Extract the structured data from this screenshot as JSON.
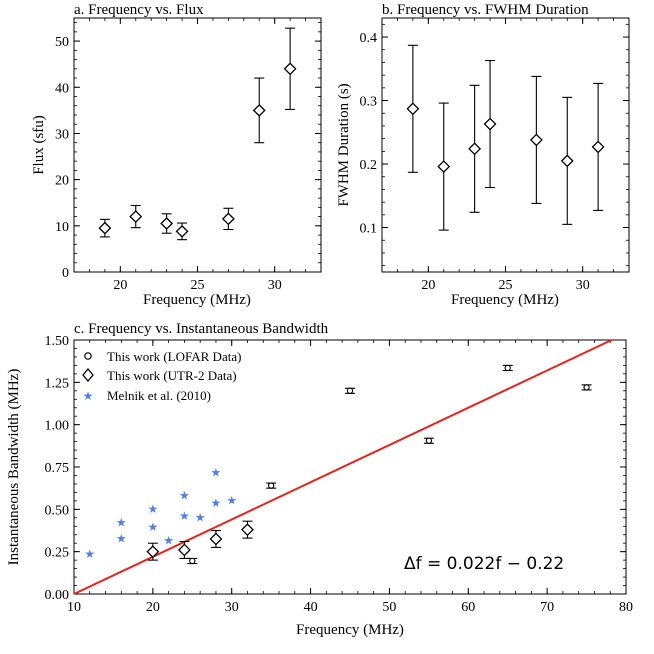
{
  "chart_data": [
    {
      "id": "a",
      "type": "scatter",
      "title": "a. Frequency vs. Flux",
      "xlabel": "Frequency (MHz)",
      "ylabel": "Flux (sfu)",
      "xlim": [
        17,
        33
      ],
      "ylim": [
        0,
        55
      ],
      "xticks": [
        20,
        25,
        30
      ],
      "yticks": [
        0,
        10,
        20,
        30,
        40,
        50
      ],
      "ytick_labels": [
        "0",
        "10",
        "20",
        "30",
        "40",
        "50"
      ],
      "series": [
        {
          "marker": "diamond",
          "x": [
            19,
            21,
            23,
            24,
            27,
            29,
            31
          ],
          "y": [
            9.5,
            12.0,
            10.5,
            8.8,
            11.5,
            35.0,
            44.0
          ],
          "err_low": [
            7.6,
            9.6,
            8.4,
            7.0,
            9.2,
            28.0,
            35.2
          ],
          "err_high": [
            11.4,
            14.4,
            12.6,
            10.6,
            13.8,
            42.0,
            52.8
          ]
        }
      ]
    },
    {
      "id": "b",
      "type": "scatter",
      "title": "b. Frequency vs. FWHM Duration",
      "xlabel": "Frequency (MHz)",
      "ylabel": "FWHM Duration (s)",
      "xlim": [
        17,
        33
      ],
      "ylim": [
        0.03,
        0.43
      ],
      "xticks": [
        20,
        25,
        30
      ],
      "yticks": [
        0.1,
        0.2,
        0.3,
        0.4
      ],
      "ytick_labels": [
        "0.1",
        "0.2",
        "0.3",
        "0.4"
      ],
      "series": [
        {
          "marker": "diamond",
          "x": [
            19,
            21,
            23,
            24,
            27,
            29,
            31
          ],
          "y": [
            0.287,
            0.196,
            0.224,
            0.263,
            0.238,
            0.205,
            0.227
          ],
          "err_low": [
            0.187,
            0.096,
            0.124,
            0.163,
            0.138,
            0.105,
            0.127
          ],
          "err_high": [
            0.387,
            0.296,
            0.324,
            0.363,
            0.338,
            0.305,
            0.327
          ]
        }
      ]
    },
    {
      "id": "c",
      "type": "scatter",
      "title": "c. Frequency vs. Instantaneous Bandwidth",
      "xlabel": "Frequency (MHz)",
      "ylabel": "Instantaneous Bandwidth (MHz)",
      "xlim": [
        10,
        80
      ],
      "ylim": [
        0,
        1.5
      ],
      "xticks": [
        10,
        20,
        30,
        40,
        50,
        60,
        70,
        80
      ],
      "yticks": [
        0,
        0.25,
        0.5,
        0.75,
        1.0,
        1.25,
        1.5
      ],
      "ytick_labels": [
        "0.00",
        "0.25",
        "0.50",
        "0.75",
        "1.00",
        "1.25",
        "1.50"
      ],
      "legend_position": "top-left",
      "annotation": "Δf = 0.022f − 0.22",
      "fit_line": {
        "slope": 0.022,
        "intercept": -0.22,
        "color": "#e8231b"
      },
      "series": [
        {
          "name": "This work (LOFAR Data)",
          "marker": "circle",
          "x": [
            25,
            35,
            45,
            55,
            65,
            75
          ],
          "y": [
            0.195,
            0.64,
            1.2,
            0.905,
            1.335,
            1.22
          ],
          "err_low": [
            0.18,
            0.625,
            1.185,
            0.89,
            1.32,
            1.205
          ],
          "err_high": [
            0.21,
            0.655,
            1.215,
            0.92,
            1.35,
            1.235
          ]
        },
        {
          "name": "This work (UTR-2 Data)",
          "marker": "diamond",
          "x": [
            20,
            24,
            28,
            32
          ],
          "y": [
            0.25,
            0.26,
            0.325,
            0.38
          ],
          "err_low": [
            0.2,
            0.21,
            0.275,
            0.33
          ],
          "err_high": [
            0.3,
            0.31,
            0.375,
            0.43
          ]
        },
        {
          "name": "Melnik et al. (2010)",
          "marker": "star",
          "color": "#4f7fe8",
          "x": [
            12,
            16,
            16,
            20,
            20,
            22,
            24,
            24,
            26,
            28,
            28,
            30
          ],
          "y": [
            0.24,
            0.425,
            0.33,
            0.505,
            0.4,
            0.32,
            0.585,
            0.465,
            0.455,
            0.72,
            0.54,
            0.555
          ]
        }
      ]
    }
  ]
}
